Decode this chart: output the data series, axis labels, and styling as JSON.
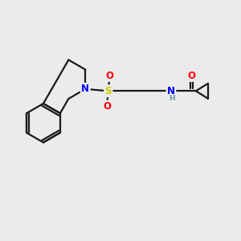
{
  "background_color": "#ebebeb",
  "bond_color": "#1a1a1a",
  "atom_colors": {
    "N": "#0000ff",
    "S": "#cccc00",
    "O": "#ff0000",
    "H": "#6a9a9a",
    "C": "#1a1a1a"
  },
  "font_size_atoms": 8.5,
  "figsize": [
    3.0,
    3.0
  ],
  "dpi": 100,
  "xlim": [
    0.0,
    9.5
  ],
  "ylim": [
    2.5,
    8.0
  ]
}
